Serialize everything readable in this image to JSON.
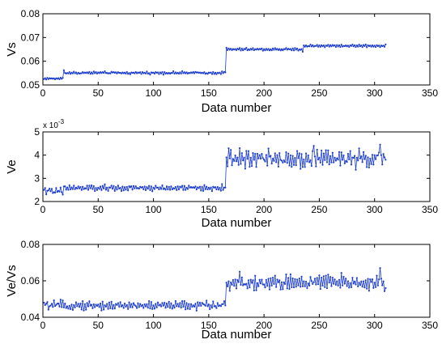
{
  "chart_data": [
    {
      "type": "line",
      "xlabel": "Data number",
      "ylabel": "Vs",
      "xlim": [
        0,
        350
      ],
      "ylim": [
        0.05,
        0.08
      ],
      "xticks": [
        0,
        50,
        100,
        150,
        200,
        250,
        300,
        350
      ],
      "xtick_labels": [
        "0",
        "50",
        "100",
        "150",
        "200",
        "250",
        "300",
        "350"
      ],
      "yticks": [
        0.05,
        0.06,
        0.07,
        0.08
      ],
      "ytick_labels": [
        "0.05",
        "0.06",
        "0.07",
        "0.08"
      ],
      "grid": false,
      "color": "#1f3fcf",
      "marker": "dot",
      "series": [
        {
          "segments": [
            {
              "x_range": [
                1,
                18
              ],
              "base": 0.0527,
              "noise": 0.0005
            },
            {
              "x_range": [
                19,
                165
              ],
              "base": 0.0551,
              "noise": 0.0007
            },
            {
              "x_range": [
                166,
                235
              ],
              "base": 0.065,
              "noise": 0.0007
            },
            {
              "x_range": [
                236,
                310
              ],
              "base": 0.0665,
              "noise": 0.0007
            }
          ],
          "x": [
            1,
            10,
            18,
            19,
            30,
            50,
            75,
            100,
            125,
            150,
            165,
            166,
            175,
            200,
            225,
            235,
            240,
            250,
            275,
            300,
            310
          ],
          "values": [
            0.0525,
            0.0528,
            0.053,
            0.0562,
            0.0553,
            0.0553,
            0.0548,
            0.0552,
            0.0548,
            0.0552,
            0.0553,
            0.0657,
            0.0647,
            0.0651,
            0.0646,
            0.064,
            0.0664,
            0.0667,
            0.0663,
            0.0666,
            0.0671
          ]
        }
      ]
    },
    {
      "type": "line",
      "xlabel": "Data number",
      "ylabel": "Ve",
      "exponent_label": "x 10",
      "exponent_power": "-3",
      "xlim": [
        0,
        350
      ],
      "ylim": [
        2,
        5
      ],
      "xticks": [
        0,
        50,
        100,
        150,
        200,
        250,
        300,
        350
      ],
      "xtick_labels": [
        "0",
        "50",
        "100",
        "150",
        "200",
        "250",
        "300",
        "350"
      ],
      "yticks": [
        2,
        3,
        4,
        5
      ],
      "ytick_labels": [
        "2",
        "3",
        "4",
        "5"
      ],
      "grid": false,
      "color": "#1f3fcf",
      "marker": "dot",
      "series": [
        {
          "segments": [
            {
              "x_range": [
                1,
                18
              ],
              "base": 2.45,
              "noise": 0.18
            },
            {
              "x_range": [
                19,
                165
              ],
              "base": 2.58,
              "noise": 0.16
            },
            {
              "x_range": [
                166,
                310
              ],
              "base": 3.85,
              "noise": 0.5
            }
          ],
          "x": [
            1,
            10,
            18,
            19,
            50,
            100,
            150,
            165,
            166,
            178,
            200,
            245,
            300,
            305,
            310
          ],
          "values": [
            2.5,
            2.4,
            2.3,
            2.65,
            2.6,
            2.6,
            2.6,
            2.6,
            3.9,
            4.3,
            3.8,
            4.4,
            4.0,
            4.45,
            3.8
          ]
        }
      ]
    },
    {
      "type": "line",
      "xlabel": "Data number",
      "ylabel": "Ve/Vs",
      "xlim": [
        0,
        350
      ],
      "ylim": [
        0.04,
        0.08
      ],
      "xticks": [
        0,
        50,
        100,
        150,
        200,
        250,
        300,
        350
      ],
      "xtick_labels": [
        "0",
        "50",
        "100",
        "150",
        "200",
        "250",
        "300",
        "350"
      ],
      "yticks": [
        0.04,
        0.06,
        0.08
      ],
      "ytick_labels": [
        "0.04",
        "0.06",
        "0.08"
      ],
      "grid": false,
      "color": "#1f3fcf",
      "marker": "dot",
      "series": [
        {
          "segments": [
            {
              "x_range": [
                1,
                165
              ],
              "base": 0.0465,
              "noise": 0.003
            },
            {
              "x_range": [
                166,
                310
              ],
              "base": 0.059,
              "noise": 0.0055
            }
          ],
          "x": [
            1,
            20,
            50,
            100,
            150,
            165,
            166,
            178,
            200,
            250,
            300,
            305,
            310
          ],
          "values": [
            0.048,
            0.0475,
            0.047,
            0.0465,
            0.047,
            0.0465,
            0.059,
            0.065,
            0.058,
            0.063,
            0.059,
            0.067,
            0.056
          ]
        }
      ]
    }
  ]
}
